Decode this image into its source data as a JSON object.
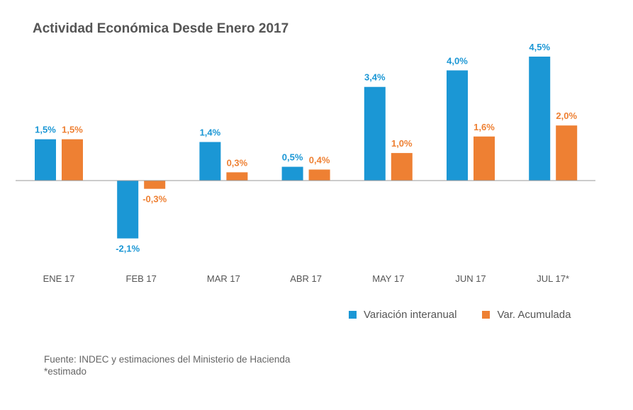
{
  "chart_data": {
    "type": "bar",
    "title": "Actividad Económica Desde Enero 2017",
    "categories": [
      "ENE 17",
      "FEB 17",
      "MAR 17",
      "ABR 17",
      "MAY 17",
      "JUN 17",
      "JUL 17*"
    ],
    "series": [
      {
        "name": "Variación interanual",
        "color": "#1b97d5",
        "values": [
          1.5,
          -2.1,
          1.4,
          0.5,
          3.4,
          4.0,
          4.5
        ],
        "labels": [
          "1,5%",
          "-2,1%",
          "1,4%",
          "0,5%",
          "3,4%",
          "4,0%",
          "4,5%"
        ]
      },
      {
        "name": "Var. Acumulada",
        "color": "#ee8033",
        "values": [
          1.5,
          -0.3,
          0.3,
          0.4,
          1.0,
          1.6,
          2.0
        ],
        "labels": [
          "1,5%",
          "-0,3%",
          "0,3%",
          "0,4%",
          "1,0%",
          "1,6%",
          "2,0%"
        ]
      }
    ],
    "legend_position": "bottom-right",
    "grid": false
  },
  "footer": {
    "source": "Fuente: INDEC y estimaciones del Ministerio de Hacienda",
    "note": "*estimado"
  }
}
